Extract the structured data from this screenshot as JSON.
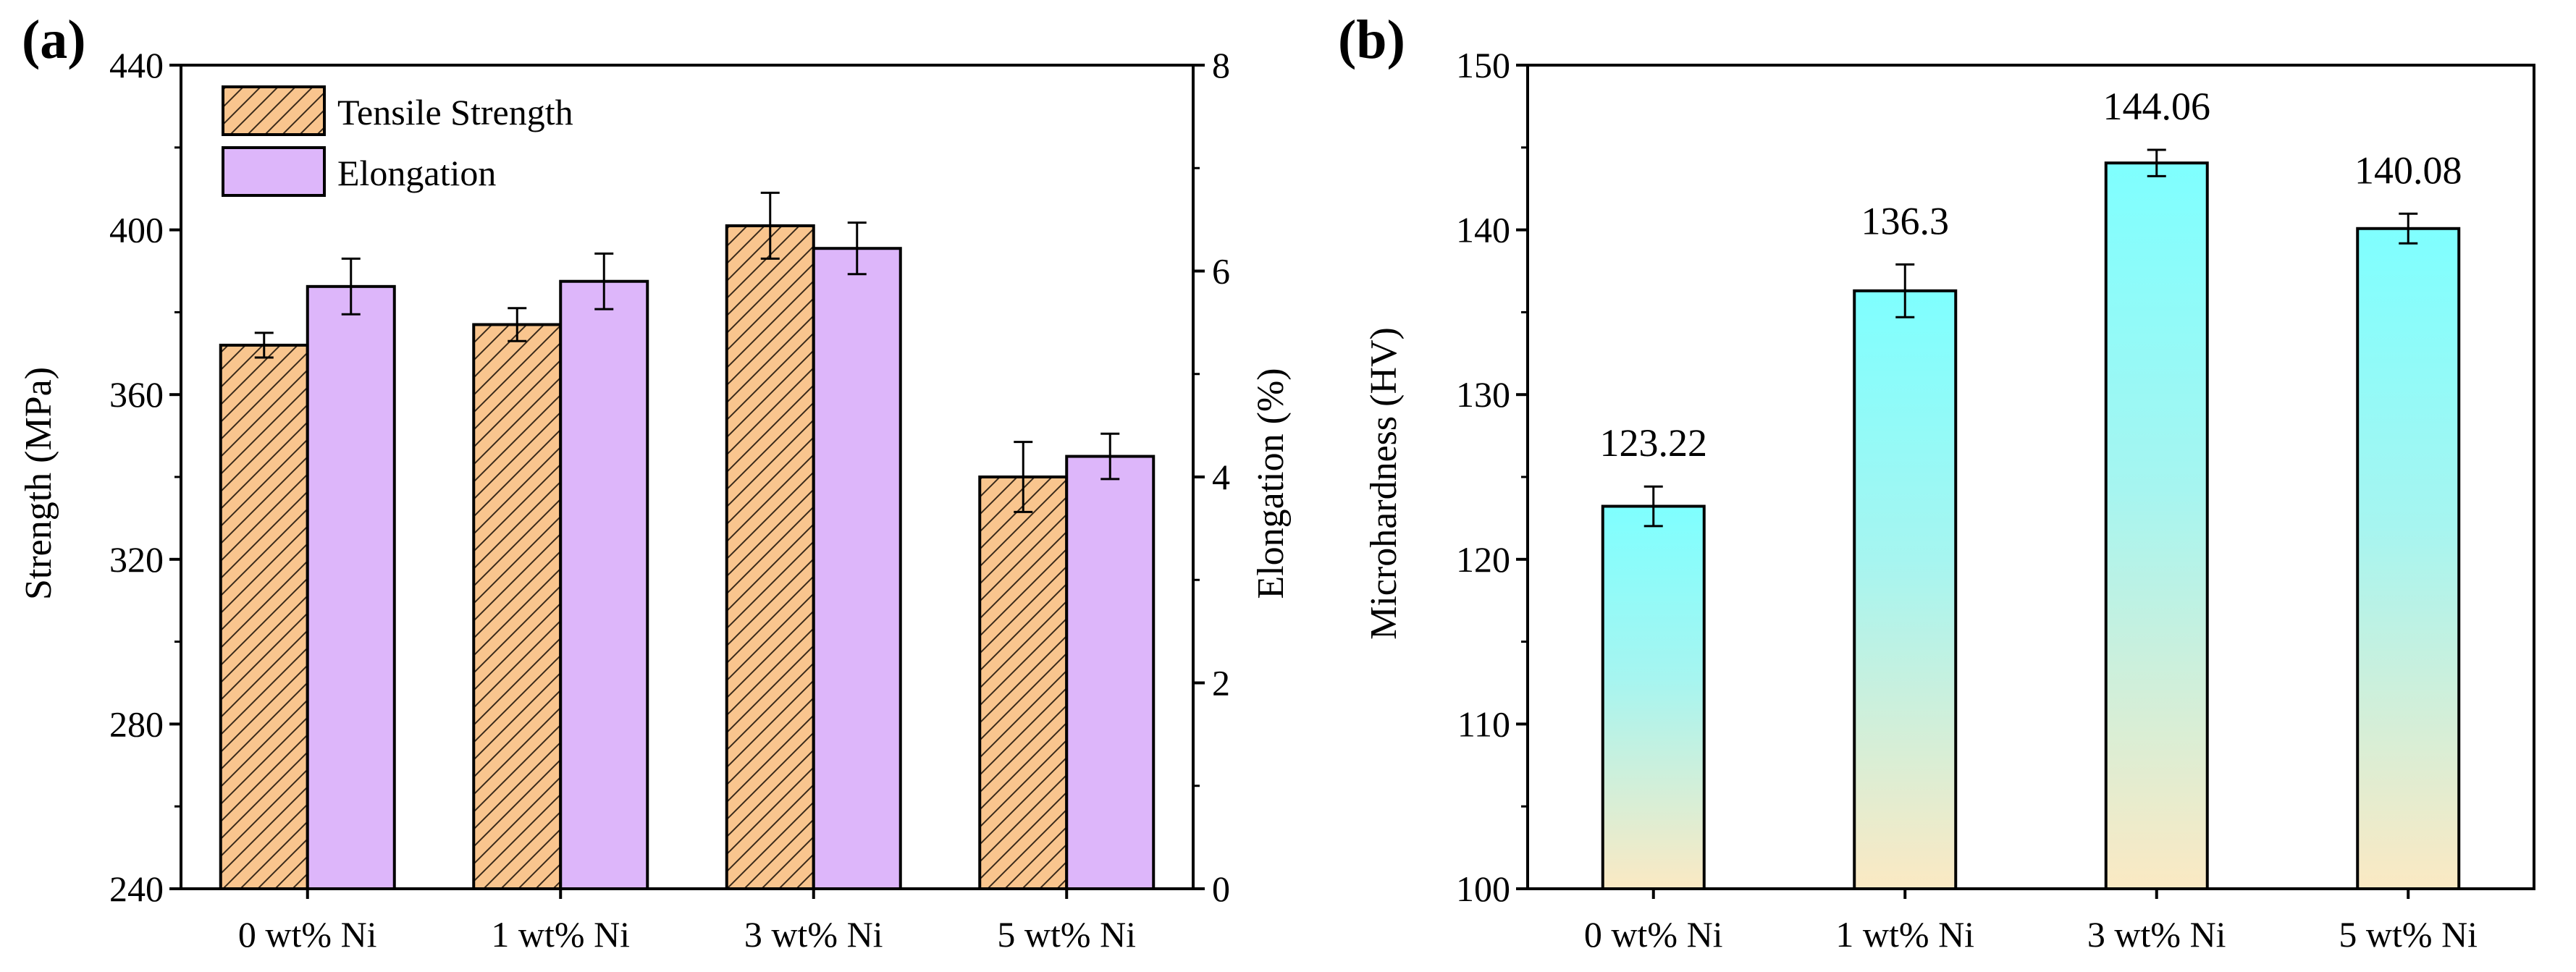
{
  "chart_data": [
    {
      "panel": "(a)",
      "type": "bar",
      "categories": [
        "0 wt% Ni",
        "1 wt% Ni",
        "3 wt% Ni",
        "5 wt% Ni"
      ],
      "series": [
        {
          "name": "Tensile Strength",
          "axis": "left",
          "values": [
            372,
            377,
            401,
            340
          ],
          "errors": [
            3,
            4,
            8,
            8.5
          ],
          "color": "#F9C58E",
          "pattern": "diagonal-hatch"
        },
        {
          "name": "Elongation",
          "axis": "right",
          "values": [
            5.85,
            5.9,
            6.22,
            4.2
          ],
          "errors": [
            0.27,
            0.27,
            0.25,
            0.22
          ],
          "color": "#DDB6FA"
        }
      ],
      "ylabel": "Strength (MPa)",
      "ylim": [
        240,
        440
      ],
      "yticks": [
        240,
        280,
        320,
        360,
        400,
        440
      ],
      "y2label": "Elongation (%)",
      "y2lim": [
        0,
        8
      ],
      "y2ticks": [
        0,
        2,
        4,
        6,
        8
      ],
      "xlabel": "",
      "legend": "top-left",
      "grid": false
    },
    {
      "panel": "(b)",
      "type": "bar",
      "categories": [
        "0 wt% Ni",
        "1 wt% Ni",
        "3 wt% Ni",
        "5 wt% Ni"
      ],
      "series": [
        {
          "name": "Microhardness",
          "values": [
            123.22,
            136.3,
            144.06,
            140.08
          ],
          "errors": [
            1.2,
            1.6,
            0.8,
            0.9
          ],
          "data_labels": [
            "123.22",
            "136.3",
            "144.06",
            "140.08"
          ],
          "gradient": [
            "#7FFFFF",
            "#FBE9C3"
          ]
        }
      ],
      "ylabel": "Microhardness (HV)",
      "ylim": [
        100,
        150
      ],
      "yticks": [
        100,
        110,
        120,
        130,
        140,
        150
      ],
      "xlabel": "",
      "grid": false
    }
  ]
}
